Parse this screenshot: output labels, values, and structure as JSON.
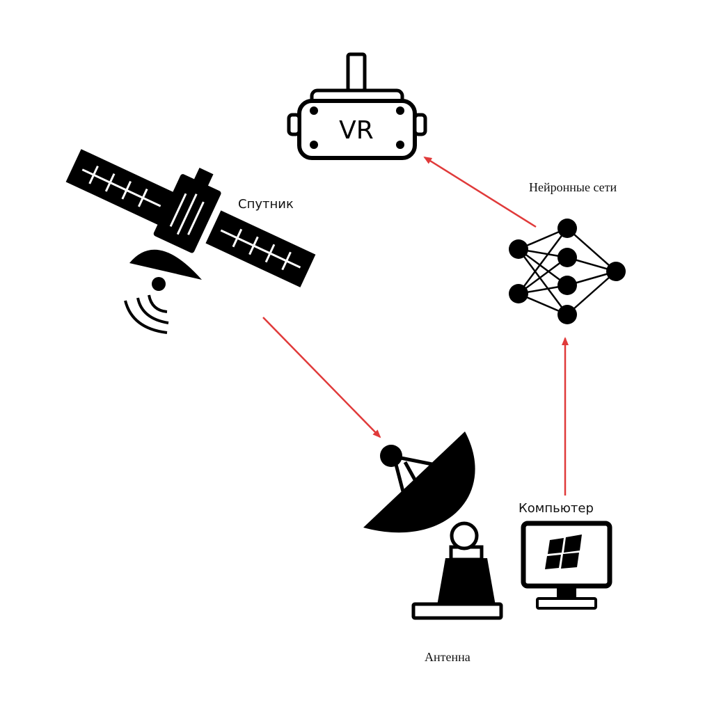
{
  "labels": {
    "satellite": "Спутник",
    "neural_networks": "Нейронные сети",
    "computer": "Компьютер",
    "antenna": "Антенна",
    "vr": "VR"
  },
  "colors": {
    "arrow": "#e03a3a",
    "ink": "#000000",
    "background": "#ffffff"
  },
  "icons": [
    "vr-headset-icon",
    "satellite-icon",
    "neural-network-icon",
    "antenna-dish-icon",
    "computer-monitor-icon",
    "windows-logo-icon"
  ],
  "edges": [
    {
      "from": "satellite",
      "to": "antenna"
    },
    {
      "from": "computer",
      "to": "neural_networks"
    },
    {
      "from": "neural_networks",
      "to": "vr"
    }
  ]
}
